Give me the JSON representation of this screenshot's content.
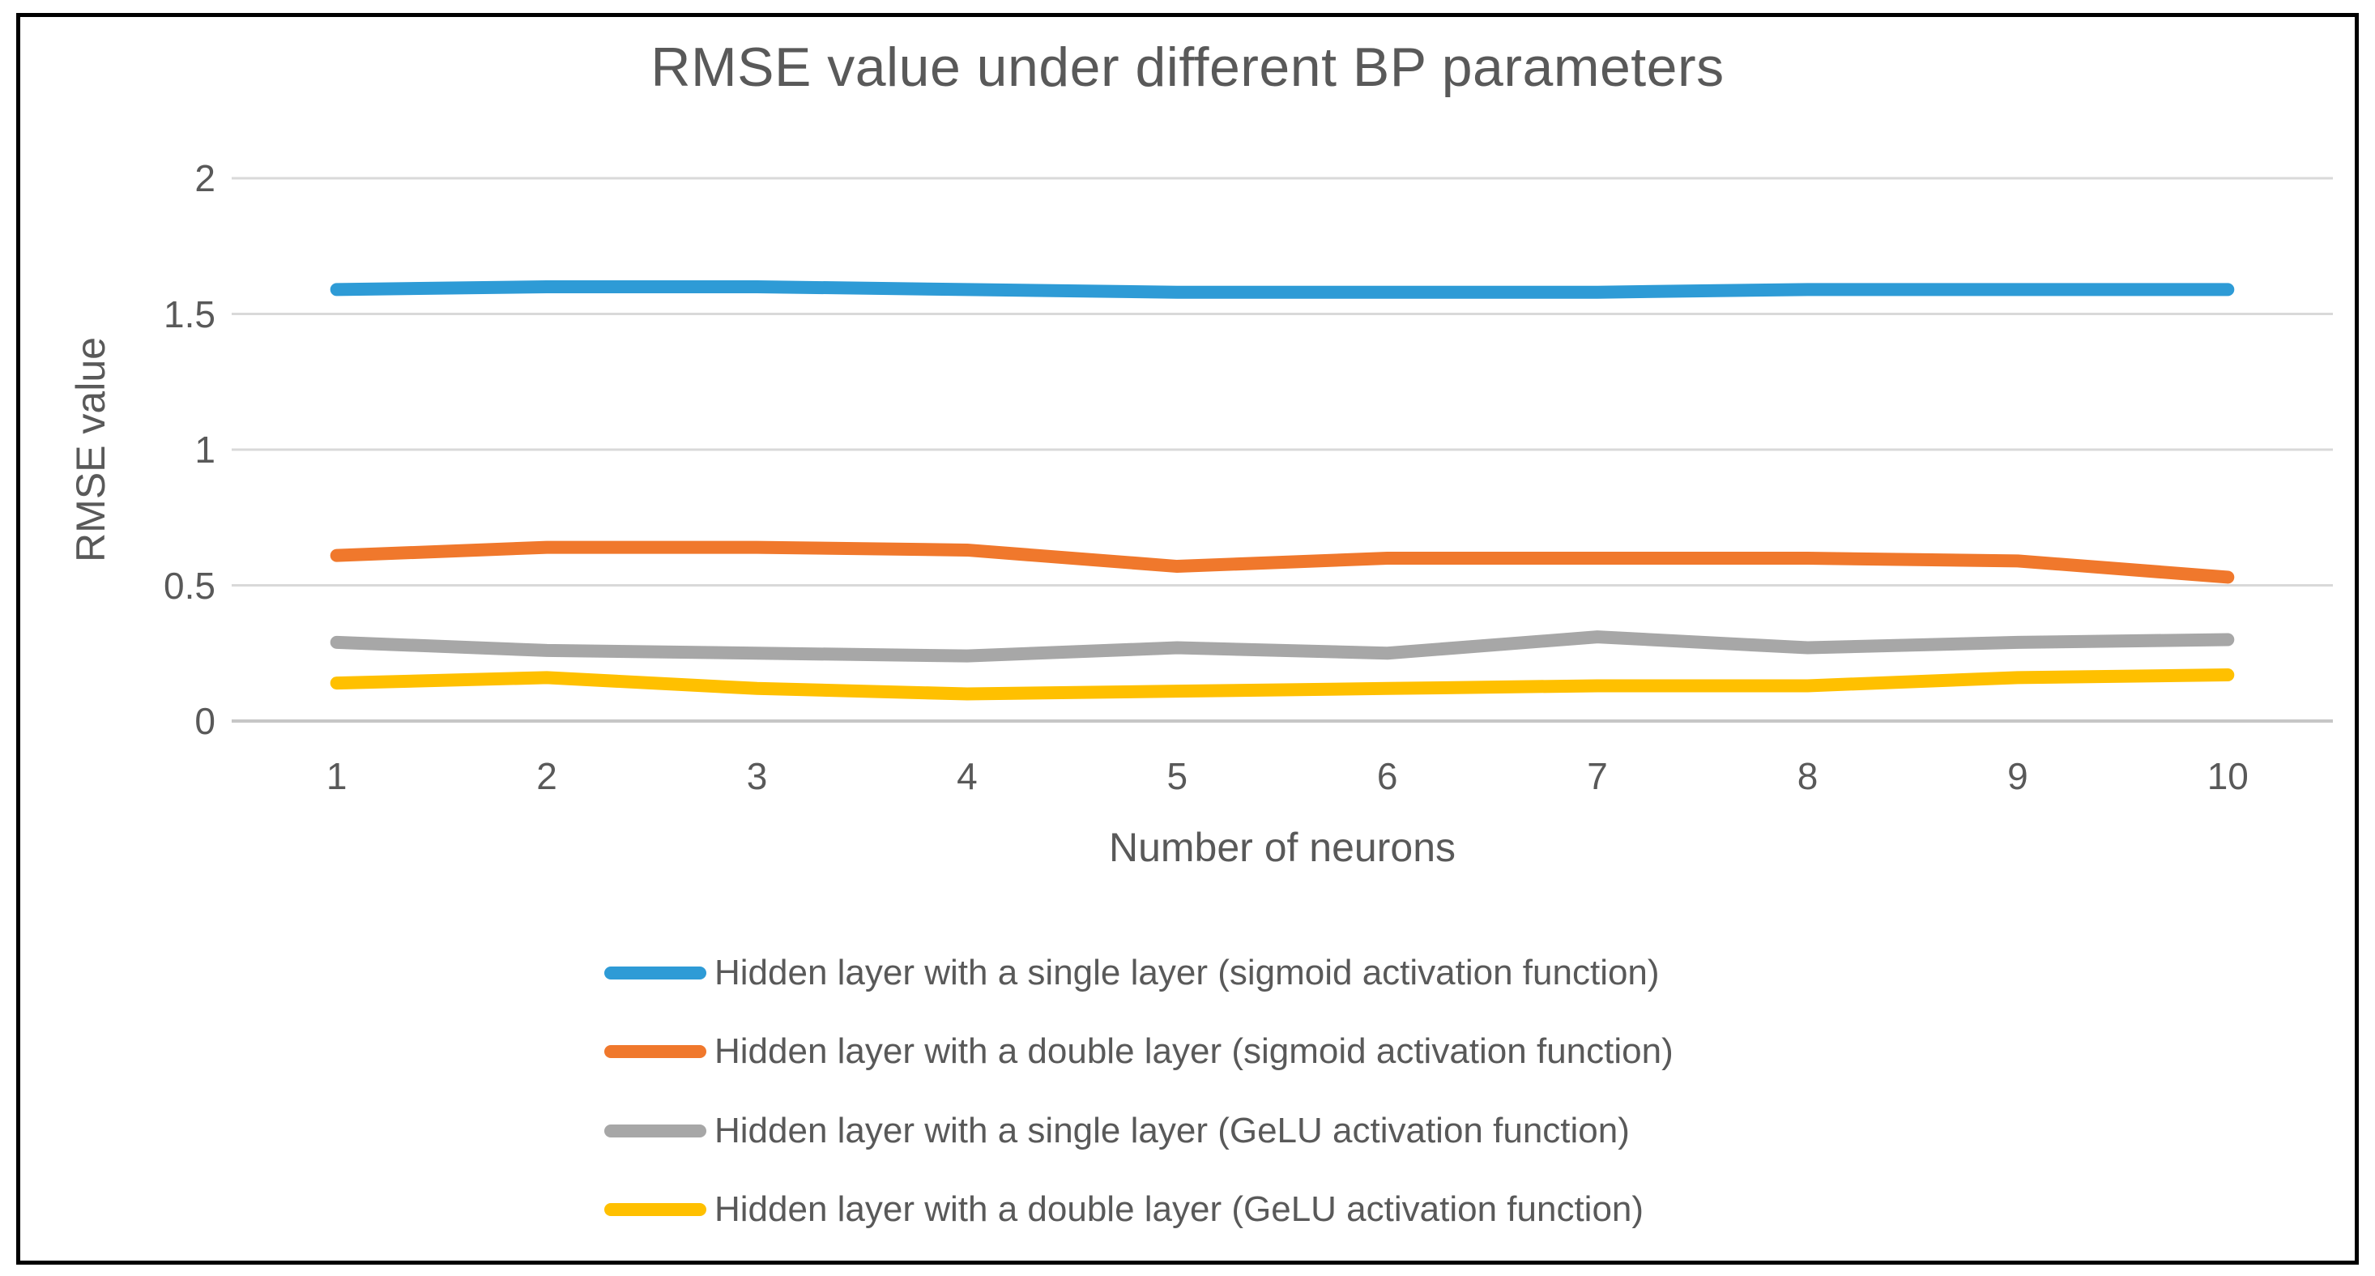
{
  "chart_data": {
    "type": "line",
    "title": "RMSE value under different BP parameters",
    "xlabel": "Number of neurons",
    "ylabel": "RMSE value",
    "x": [
      1,
      2,
      3,
      4,
      5,
      6,
      7,
      8,
      9,
      10
    ],
    "xtick_labels": [
      "1",
      "2",
      "3",
      "4",
      "5",
      "6",
      "7",
      "8",
      "9",
      "10"
    ],
    "ylim": [
      0,
      2
    ],
    "yticks": [
      0,
      0.5,
      1,
      1.5,
      2
    ],
    "ytick_labels": [
      "0",
      "0.5",
      "1",
      "1.5",
      "2"
    ],
    "grid": true,
    "grid_color": "#D9D9D9",
    "axis_line_color": "#C6C6C6",
    "legend_position": "bottom",
    "series": [
      {
        "name": "Hidden layer with a single layer (sigmoid activation function)",
        "color": "#2E9BD6",
        "values": [
          1.59,
          1.6,
          1.6,
          1.59,
          1.58,
          1.58,
          1.58,
          1.59,
          1.59,
          1.59
        ]
      },
      {
        "name": "Hidden layer with a double layer (sigmoid activation function)",
        "color": "#F0782C",
        "values": [
          0.61,
          0.64,
          0.64,
          0.63,
          0.57,
          0.6,
          0.6,
          0.6,
          0.59,
          0.53
        ]
      },
      {
        "name": "Hidden layer with a single layer (GeLU activation function)",
        "color": "#A7A7A7",
        "values": [
          0.29,
          0.26,
          0.25,
          0.24,
          0.27,
          0.25,
          0.31,
          0.27,
          0.29,
          0.3
        ]
      },
      {
        "name": "Hidden layer with a double layer (GeLU activation function)",
        "color": "#FFC000",
        "values": [
          0.14,
          0.16,
          0.12,
          0.1,
          0.11,
          0.12,
          0.13,
          0.13,
          0.16,
          0.17
        ]
      }
    ]
  }
}
